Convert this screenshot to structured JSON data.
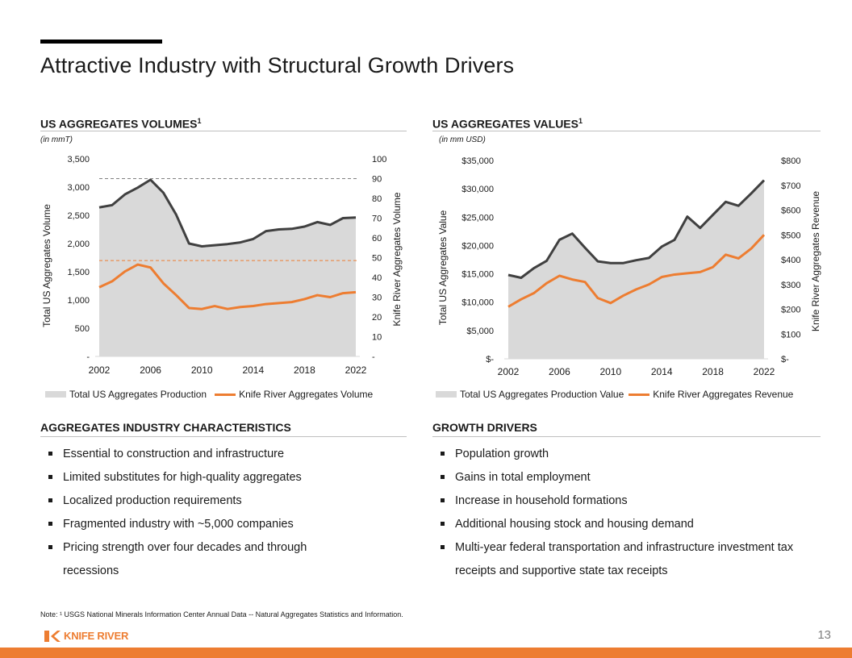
{
  "title": "Attractive Industry with Structural Growth Drivers",
  "left_chart_section": {
    "title": "US AGGREGATES VOLUMES",
    "sup": "1",
    "unit": "(in mmT)"
  },
  "right_chart_section": {
    "title": "US AGGREGATES VALUES",
    "sup": "1",
    "unit": "(in mm USD)"
  },
  "characteristics": {
    "title": "AGGREGATES INDUSTRY CHARACTERISTICS",
    "items": [
      "Essential to construction and infrastructure",
      "Limited substitutes for high-quality aggregates",
      "Localized production requirements",
      "Fragmented industry with ~5,000 companies",
      "Pricing strength over four decades and through recessions"
    ]
  },
  "growth_drivers": {
    "title": "GROWTH DRIVERS",
    "items": [
      "Population growth",
      "Gains in total employment",
      "Increase in household formations",
      "Additional housing stock and housing demand",
      "Multi-year federal transportation and infrastructure investment tax receipts and supportive state tax receipts"
    ]
  },
  "note": "Note: ¹ USGS National Minerals Information Center Annual Data -- Natural Aggregates Statistics and Information.",
  "logo": {
    "text": "KNIFE RIVER",
    "icon": "knife-river-logo-icon"
  },
  "page_number": "13",
  "colors": {
    "accent": "#ed7d31",
    "area": "#d9d9d9",
    "area_line": "#404040"
  },
  "chart_data": [
    {
      "type": "area",
      "x": [
        2002,
        2003,
        2004,
        2005,
        2006,
        2007,
        2008,
        2009,
        2010,
        2011,
        2012,
        2013,
        2014,
        2015,
        2016,
        2017,
        2018,
        2019,
        2020,
        2021,
        2022
      ],
      "x_ticks": [
        2002,
        2006,
        2010,
        2014,
        2018,
        2022
      ],
      "ylim": [
        0,
        3500
      ],
      "y_ticks": [
        "-",
        "500",
        "1,000",
        "1,500",
        "2,000",
        "2,500",
        "3,000",
        "3,500"
      ],
      "y2lim": [
        0,
        100
      ],
      "y2_ticks": [
        "-",
        "10",
        "20",
        "30",
        "40",
        "50",
        "60",
        "70",
        "80",
        "90",
        "100"
      ],
      "ylabel": "Total US Aggregates Volume",
      "y2label": "Knife River Aggregates Volume",
      "series": [
        {
          "name": "Total US Aggregates Production",
          "axis": "left",
          "kind": "area",
          "values": [
            2640,
            2680,
            2870,
            2990,
            3130,
            2900,
            2510,
            2000,
            1950,
            1970,
            1990,
            2020,
            2080,
            2220,
            2250,
            2260,
            2300,
            2380,
            2330,
            2450,
            2460
          ]
        },
        {
          "name": "Knife River Aggregates Volume",
          "axis": "right",
          "kind": "line",
          "values": [
            35,
            38,
            43,
            46.5,
            45,
            37,
            31,
            24.5,
            24,
            25.5,
            24,
            25,
            25.5,
            26.5,
            27,
            27.5,
            29,
            31,
            30,
            32,
            32.5
          ]
        }
      ],
      "reference_lines": [
        {
          "axis": "left",
          "value": 3150,
          "color": "#808080"
        },
        {
          "axis": "right",
          "value": 48.5,
          "color": "#ed7d31"
        }
      ],
      "legend": "bottom"
    },
    {
      "type": "area",
      "x": [
        2002,
        2003,
        2004,
        2005,
        2006,
        2007,
        2008,
        2009,
        2010,
        2011,
        2012,
        2013,
        2014,
        2015,
        2016,
        2017,
        2018,
        2019,
        2020,
        2021,
        2022
      ],
      "x_ticks": [
        2002,
        2006,
        2010,
        2014,
        2018,
        2022
      ],
      "ylim": [
        0,
        35000
      ],
      "y_ticks": [
        "$-",
        "$5,000",
        "$10,000",
        "$15,000",
        "$20,000",
        "$25,000",
        "$30,000",
        "$35,000"
      ],
      "y2lim": [
        0,
        800
      ],
      "y2_ticks": [
        "$-",
        "$100",
        "$200",
        "$300",
        "$400",
        "$500",
        "$600",
        "$700",
        "$800"
      ],
      "ylabel": "Total US Aggregates Value",
      "y2label": "Knife River Aggregates Revenue",
      "series": [
        {
          "name": "Total US Aggregates Production Value",
          "axis": "left",
          "kind": "area",
          "values": [
            14800,
            14300,
            16000,
            17300,
            21000,
            22100,
            19600,
            17200,
            16900,
            16900,
            17400,
            17800,
            19800,
            21000,
            25100,
            23100,
            25400,
            27700,
            27000,
            29200,
            31500
          ]
        },
        {
          "name": "Knife River Aggregates Revenue",
          "axis": "right",
          "kind": "line",
          "values": [
            210,
            240,
            265,
            305,
            335,
            320,
            310,
            245,
            225,
            255,
            280,
            300,
            330,
            340,
            345,
            350,
            370,
            420,
            405,
            445,
            500
          ]
        }
      ],
      "legend": "bottom"
    }
  ]
}
